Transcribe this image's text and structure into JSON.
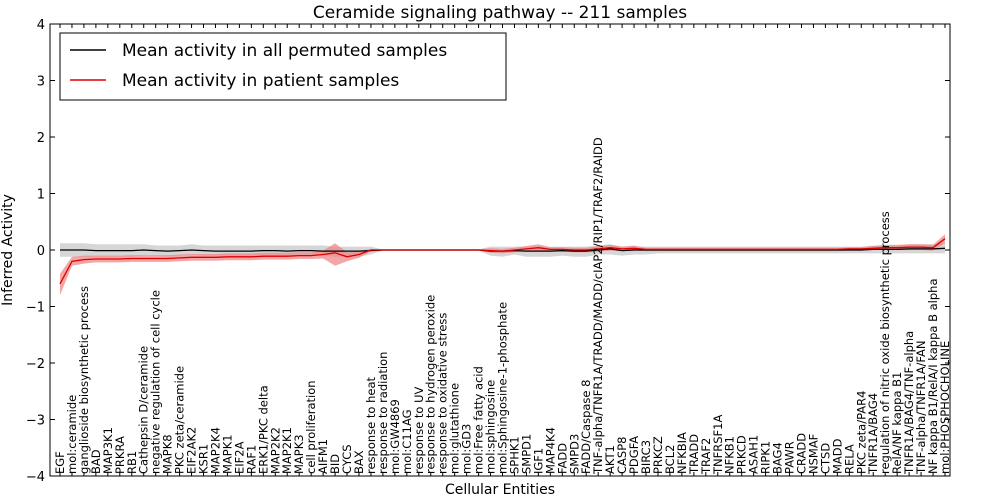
{
  "chart_data": {
    "type": "line",
    "title": "Ceramide signaling pathway -- 211 samples",
    "xlabel": "Cellular Entities",
    "ylabel": "Inferred Activity",
    "ylim": [
      -4,
      4
    ],
    "yticks": [
      "4",
      "3",
      "2",
      "1",
      "0",
      "−1",
      "−2",
      "−3",
      "−4"
    ],
    "grid": false,
    "legend_position": "top-left",
    "colors": {
      "permuted": "#000000",
      "permuted_band": "#c8c8c8",
      "patient": "#dd0000",
      "patient_band": "#f08080"
    },
    "categories": [
      "EGF",
      "mol:ceramide",
      "ganglioside biosynthetic process",
      "BAD",
      "MAP3K1",
      "PRKRA",
      "RB1",
      "Cathepsin D/ceramide",
      "negative regulation of cell cycle",
      "MAPK8",
      "PKC zeta/ceramide",
      "EIF2AK2",
      "KSR1",
      "MAP2K4",
      "MAPK1",
      "EIF2A",
      "RAF1",
      "ERK1/PKC delta",
      "MAP2K2",
      "MAP2K1",
      "MAPK3",
      "cell proliferation",
      "AIFM1",
      "BID",
      "CYCS",
      "BAX",
      "response to heat",
      "response to radiation",
      "mol:GW4869",
      "mol:C11AG",
      "response to UV",
      "response to hydrogen peroxide",
      "response to oxidative stress",
      "mol:glutathione",
      "mol:GD3",
      "mol:Free fatty acid",
      "mol:sphingosine",
      "mol:Sphingosine-1-phosphate",
      "SPHK1",
      "SMPD1",
      "IGF1",
      "MAP4K4",
      "FADD",
      "SMPD3",
      "FADD/Caspase 8",
      "TNF-alpha/TNFR1A/TRADD/MADD/cIAP2/RIP1/TRAF2/RAIDD",
      "AKT1",
      "CASP8",
      "PDGFA",
      "BIRC3",
      "PRKCZ",
      "BCL2",
      "NFKBIA",
      "TRADD",
      "TRAF2",
      "TNFRSF1A",
      "NFKB1",
      "PRKCD",
      "ASAH1",
      "RIPK1",
      "BAG4",
      "PAWR",
      "CRADD",
      "NSMAF",
      "CTSD",
      "MADD",
      "RELA",
      "PKC zeta/PAR4",
      "TNFR1A/BAG4",
      "regulation of nitric oxide biosynthetic process",
      "RelA/NF kappa B1",
      "TNFR1A/BAG4/TNF-alpha",
      "TNF-alpha/TNFR1A/FAN",
      "NF kappa B1/RelA/I kappa B alpha",
      "mol:PHOSPHOCHOLINE"
    ],
    "series": [
      {
        "name": "Mean activity in all permuted samples",
        "color": "#000000",
        "values": [
          0.0,
          0.0,
          0.0,
          -0.01,
          -0.01,
          -0.01,
          -0.01,
          0.0,
          -0.01,
          -0.02,
          -0.01,
          0.0,
          -0.01,
          -0.02,
          -0.02,
          -0.02,
          -0.02,
          -0.01,
          -0.01,
          -0.02,
          -0.01,
          -0.01,
          -0.02,
          -0.02,
          -0.02,
          -0.02,
          -0.01,
          0.0,
          0.0,
          0.0,
          0.0,
          0.0,
          0.0,
          0.0,
          0.0,
          0.0,
          -0.02,
          -0.02,
          -0.01,
          -0.02,
          -0.02,
          -0.02,
          -0.01,
          -0.02,
          -0.02,
          0.0,
          0.02,
          -0.01,
          0.0,
          0.0,
          0.0,
          0.0,
          0.0,
          0.0,
          0.0,
          0.0,
          0.0,
          0.0,
          0.0,
          0.0,
          0.0,
          0.0,
          0.0,
          0.0,
          0.0,
          0.0,
          0.0,
          0.0,
          0.01,
          0.01,
          0.01,
          0.02,
          0.02,
          0.02,
          0.03
        ],
        "band_low": [
          -0.12,
          -0.12,
          -0.12,
          -0.12,
          -0.12,
          -0.12,
          -0.12,
          -0.1,
          -0.1,
          -0.12,
          -0.1,
          -0.08,
          -0.1,
          -0.1,
          -0.1,
          -0.1,
          -0.1,
          -0.08,
          -0.08,
          -0.08,
          -0.08,
          -0.08,
          -0.1,
          -0.12,
          -0.12,
          -0.12,
          -0.08,
          -0.01,
          -0.01,
          -0.01,
          -0.01,
          -0.01,
          -0.01,
          -0.01,
          -0.01,
          -0.01,
          -0.1,
          -0.12,
          -0.08,
          -0.12,
          -0.12,
          -0.12,
          -0.1,
          -0.12,
          -0.12,
          -0.08,
          -0.08,
          -0.1,
          -0.08,
          -0.08,
          -0.06,
          -0.06,
          -0.06,
          -0.06,
          -0.06,
          -0.06,
          -0.06,
          -0.06,
          -0.06,
          -0.06,
          -0.06,
          -0.06,
          -0.06,
          -0.06,
          -0.06,
          -0.06,
          -0.06,
          -0.06,
          -0.06,
          -0.06,
          -0.06,
          -0.06,
          -0.06,
          -0.06,
          -0.06
        ],
        "band_high": [
          0.12,
          0.12,
          0.12,
          0.1,
          0.1,
          0.1,
          0.1,
          0.1,
          0.08,
          0.08,
          0.08,
          0.1,
          0.08,
          0.08,
          0.08,
          0.08,
          0.08,
          0.08,
          0.08,
          0.08,
          0.08,
          0.08,
          0.08,
          0.06,
          0.06,
          0.06,
          0.06,
          0.01,
          0.01,
          0.01,
          0.01,
          0.01,
          0.01,
          0.01,
          0.01,
          0.01,
          0.06,
          0.06,
          0.06,
          0.06,
          0.06,
          0.06,
          0.06,
          0.06,
          0.06,
          0.08,
          0.1,
          0.06,
          0.06,
          0.06,
          0.06,
          0.06,
          0.06,
          0.06,
          0.06,
          0.06,
          0.06,
          0.06,
          0.06,
          0.06,
          0.06,
          0.06,
          0.06,
          0.06,
          0.06,
          0.06,
          0.06,
          0.06,
          0.08,
          0.08,
          0.08,
          0.1,
          0.1,
          0.1,
          0.12
        ]
      },
      {
        "name": "Mean activity in patient samples",
        "color": "#dd0000",
        "values": [
          -0.6,
          -0.2,
          -0.17,
          -0.16,
          -0.16,
          -0.16,
          -0.15,
          -0.15,
          -0.15,
          -0.15,
          -0.14,
          -0.13,
          -0.13,
          -0.13,
          -0.12,
          -0.12,
          -0.12,
          -0.11,
          -0.11,
          -0.11,
          -0.1,
          -0.1,
          -0.08,
          -0.05,
          -0.12,
          -0.08,
          0.0,
          0.0,
          0.0,
          0.0,
          0.0,
          0.0,
          0.0,
          0.0,
          0.0,
          0.0,
          -0.01,
          -0.02,
          0.0,
          0.02,
          0.04,
          0.01,
          0.01,
          0.0,
          0.0,
          0.02,
          0.04,
          0.02,
          0.03,
          0.01,
          0.01,
          0.01,
          0.01,
          0.01,
          0.01,
          0.01,
          0.01,
          0.01,
          0.01,
          0.01,
          0.01,
          0.01,
          0.01,
          0.01,
          0.01,
          0.01,
          0.02,
          0.02,
          0.03,
          0.04,
          0.04,
          0.05,
          0.05,
          0.04,
          0.2
        ],
        "band_low": [
          -0.8,
          -0.28,
          -0.24,
          -0.22,
          -0.22,
          -0.22,
          -0.21,
          -0.21,
          -0.21,
          -0.21,
          -0.2,
          -0.19,
          -0.19,
          -0.19,
          -0.18,
          -0.18,
          -0.18,
          -0.17,
          -0.17,
          -0.17,
          -0.16,
          -0.16,
          -0.15,
          -0.28,
          -0.2,
          -0.14,
          -0.02,
          -0.01,
          -0.01,
          -0.01,
          -0.01,
          -0.01,
          -0.01,
          -0.01,
          -0.01,
          -0.01,
          -0.05,
          -0.06,
          -0.04,
          -0.02,
          -0.02,
          -0.03,
          -0.03,
          -0.04,
          -0.04,
          -0.03,
          -0.01,
          -0.02,
          -0.01,
          -0.02,
          -0.02,
          -0.02,
          -0.02,
          -0.02,
          -0.02,
          -0.02,
          -0.02,
          -0.02,
          -0.02,
          -0.02,
          -0.02,
          -0.02,
          -0.02,
          -0.02,
          -0.02,
          -0.02,
          -0.01,
          -0.01,
          0.0,
          0.0,
          0.0,
          0.0,
          0.0,
          -0.01,
          0.12
        ],
        "band_high": [
          -0.42,
          -0.12,
          -0.1,
          -0.1,
          -0.1,
          -0.1,
          -0.09,
          -0.09,
          -0.09,
          -0.09,
          -0.08,
          -0.07,
          -0.07,
          -0.07,
          -0.06,
          -0.06,
          -0.06,
          -0.05,
          -0.05,
          -0.05,
          -0.04,
          -0.04,
          -0.01,
          0.12,
          -0.04,
          -0.02,
          0.02,
          0.01,
          0.01,
          0.01,
          0.01,
          0.01,
          0.01,
          0.01,
          0.01,
          0.01,
          0.03,
          0.02,
          0.04,
          0.07,
          0.1,
          0.05,
          0.05,
          0.04,
          0.04,
          0.07,
          0.09,
          0.06,
          0.08,
          0.04,
          0.04,
          0.04,
          0.04,
          0.04,
          0.04,
          0.04,
          0.04,
          0.04,
          0.04,
          0.04,
          0.04,
          0.04,
          0.04,
          0.04,
          0.04,
          0.04,
          0.05,
          0.05,
          0.07,
          0.09,
          0.09,
          0.1,
          0.1,
          0.09,
          0.28
        ]
      }
    ]
  }
}
